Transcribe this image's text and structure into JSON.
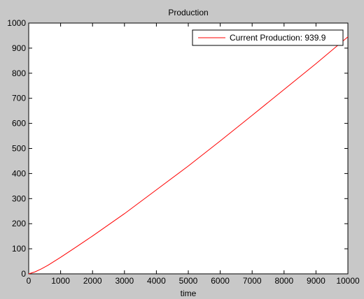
{
  "chart_data": {
    "type": "line",
    "title": "Production",
    "xlabel": "time",
    "ylabel": "",
    "xlim": [
      0,
      10000
    ],
    "ylim": [
      0,
      1000
    ],
    "xticks": [
      0,
      1000,
      2000,
      3000,
      4000,
      5000,
      6000,
      7000,
      8000,
      9000,
      10000
    ],
    "yticks": [
      0,
      100,
      200,
      300,
      400,
      500,
      600,
      700,
      800,
      900,
      1000
    ],
    "grid": false,
    "legend_position": "top-right",
    "series": [
      {
        "name": "Current Production: 939.9",
        "color": "#ff0000",
        "x": [
          0,
          200,
          400,
          600,
          800,
          1000,
          1500,
          2000,
          3000,
          4000,
          5000,
          6000,
          7000,
          8000,
          9000,
          10000
        ],
        "y": [
          0,
          8,
          20,
          34,
          50,
          66,
          108,
          151,
          240,
          335,
          430,
          530,
          632,
          735,
          838,
          945
        ]
      }
    ]
  },
  "colors": {
    "figure_background": "#c8c8c8",
    "axes_background": "#ffffff",
    "line": "#ff0000"
  }
}
